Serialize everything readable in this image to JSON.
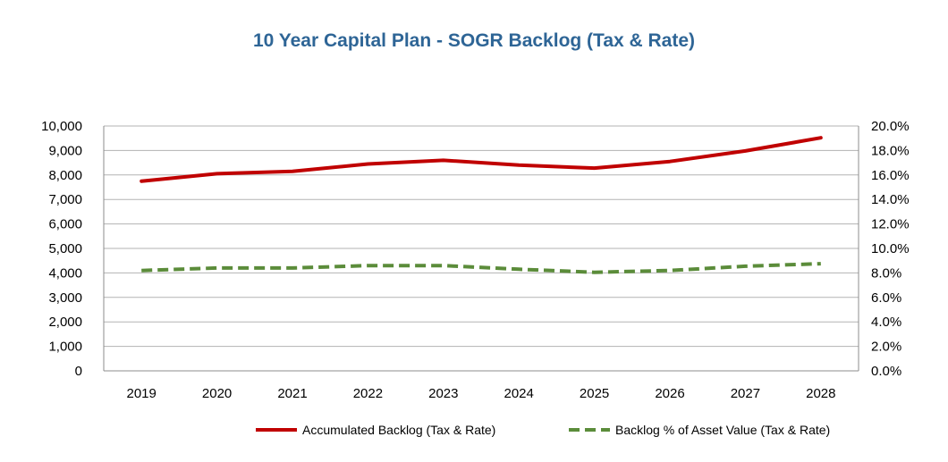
{
  "chart_data": {
    "type": "line",
    "title": "10 Year Capital Plan - SOGR Backlog (Tax & Rate)",
    "categories": [
      "2019",
      "2020",
      "2021",
      "2022",
      "2023",
      "2024",
      "2025",
      "2026",
      "2027",
      "2028"
    ],
    "y_left": {
      "range": [
        0,
        10000
      ],
      "ticks": [
        "0",
        "1,000",
        "2,000",
        "3,000",
        "4,000",
        "5,000",
        "6,000",
        "7,000",
        "8,000",
        "9,000",
        "10,000"
      ]
    },
    "y_right": {
      "range": [
        0,
        20
      ],
      "unit": "%",
      "ticks": [
        "0.0%",
        "2.0%",
        "4.0%",
        "6.0%",
        "8.0%",
        "10.0%",
        "12.0%",
        "14.0%",
        "16.0%",
        "18.0%",
        "20.0%"
      ]
    },
    "grid": true,
    "legend_position": "bottom",
    "series": [
      {
        "name": "Accumulated Backlog (Tax & Rate)",
        "axis": "left",
        "color": "#c00000",
        "style": "solid",
        "values": [
          7750,
          8050,
          8150,
          8450,
          8600,
          8400,
          8280,
          8550,
          8980,
          9520
        ]
      },
      {
        "name": "Backlog % of Asset Value (Tax & Rate)",
        "axis": "right",
        "color": "#5b8c3a",
        "style": "dashed",
        "values": [
          8.2,
          8.4,
          8.4,
          8.6,
          8.6,
          8.3,
          8.05,
          8.2,
          8.55,
          8.75
        ]
      }
    ]
  }
}
